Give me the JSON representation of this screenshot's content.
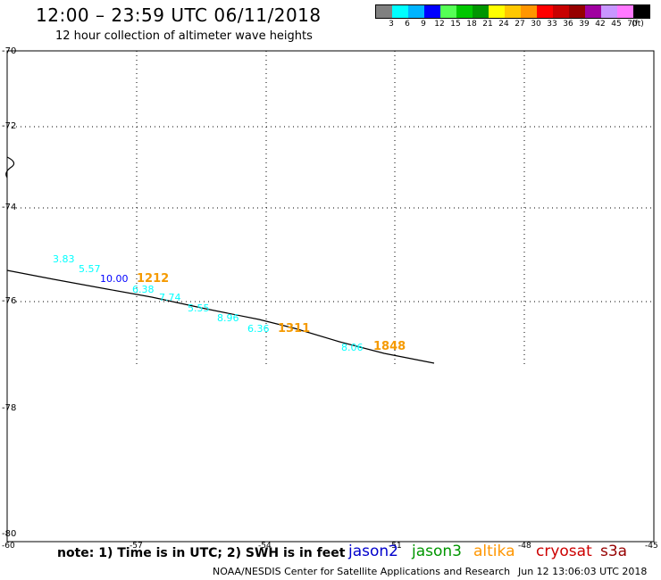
{
  "header": {
    "title": "12:00 – 23:59 UTC 06/11/2018",
    "subtitle": "12 hour collection of altimeter wave heights"
  },
  "legend": {
    "colors": [
      "#808080",
      "#00ffff",
      "#00b4ff",
      "#0000ff",
      "#55ff55",
      "#00c800",
      "#009600",
      "#ffff00",
      "#ffc800",
      "#ff9600",
      "#ff0000",
      "#c80000",
      "#960000",
      "#a000a0",
      "#c896ff",
      "#ff78ff",
      "#000000"
    ],
    "labels": [
      "3",
      "6",
      "9",
      "12",
      "15",
      "18",
      "21",
      "24",
      "27",
      "30",
      "33",
      "36",
      "39",
      "42",
      "45",
      "70",
      "(ft)"
    ]
  },
  "axes": {
    "lat_labels": [
      "-70",
      "-72",
      "-74",
      "-76",
      "-78",
      "-80"
    ],
    "lon_labels": [
      "-60",
      "-57",
      "-54",
      "-51",
      "-48",
      "-45"
    ]
  },
  "track": {
    "swh_labels": [
      {
        "text": "3.83",
        "color": "#00ffff"
      },
      {
        "text": "5.57",
        "color": "#00ffff"
      },
      {
        "text": "10.00",
        "color": "#0000ff"
      },
      {
        "text": "6.38",
        "color": "#00ffff"
      },
      {
        "text": "7.74",
        "color": "#00ffff"
      },
      {
        "text": "5.55",
        "color": "#00ffff"
      },
      {
        "text": "8.96",
        "color": "#00ffff"
      },
      {
        "text": "6.36",
        "color": "#00ffff"
      },
      {
        "text": "8.06",
        "color": "#00ffff"
      }
    ],
    "time_labels": [
      "1212",
      "1311",
      "1848"
    ]
  },
  "footer": {
    "note": "note: 1) Time is in UTC; 2) SWH is in feet",
    "satellites": [
      {
        "name": "jason2",
        "color": "#0000cc"
      },
      {
        "name": "jason3",
        "color": "#009600"
      },
      {
        "name": "altika",
        "color": "#ff9600"
      },
      {
        "name": "cryosat",
        "color": "#cc0000"
      },
      {
        "name": "s3a",
        "color": "#960000"
      }
    ],
    "credit": "NOAA/NESDIS Center for Satellite Applications and Research",
    "stamp": "Jun 12 13:06:03 UTC 2018"
  }
}
